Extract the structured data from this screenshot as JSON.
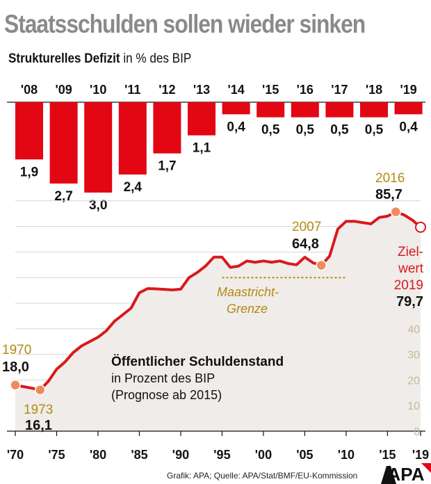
{
  "title": "Staatsschulden sollen wieder sinken",
  "subtitle_bold": "Strukturelles Defizit",
  "subtitle_rest": " in % des BIP",
  "source": "Grafik: APA; Quelle: APA/Stat/BMF/EU-Kommission",
  "logo_text": "APA",
  "colors": {
    "bar": "#e30613",
    "line": "#d9191c",
    "accent": "#b58a10",
    "point": "#f08a5d",
    "area": "#efecea",
    "title": "#8a8a8a"
  },
  "chart_data": [
    {
      "type": "bar",
      "title": "Strukturelles Defizit in % des BIP",
      "categories": [
        "'08",
        "'09",
        "'10",
        "'11",
        "'12",
        "'13",
        "'14",
        "'15",
        "'16",
        "'17",
        "'18",
        "'19"
      ],
      "values": [
        1.9,
        2.7,
        3.0,
        2.4,
        1.7,
        1.1,
        0.4,
        0.5,
        0.5,
        0.5,
        0.5,
        0.4
      ],
      "labels": [
        "1,9",
        "2,7",
        "3,0",
        "2,4",
        "1,7",
        "1,1",
        "0,4",
        "0,5",
        "0,5",
        "0,5",
        "0,5",
        "0,4"
      ],
      "orientation": "downward"
    },
    {
      "type": "area",
      "title": "Öffentlicher Schuldenstand",
      "subtitle_lines": [
        "in Prozent des BIP",
        "(Prognose ab 2015)"
      ],
      "x_ticks": [
        "'70",
        "'75",
        "'80",
        "'85",
        "'90",
        "'95",
        "'00",
        "'05",
        "'10",
        "'15",
        "'19"
      ],
      "x_tick_values": [
        1970,
        1975,
        1980,
        1985,
        1990,
        1995,
        2000,
        2005,
        2010,
        2015,
        2019
      ],
      "y_ticks": [
        0,
        10,
        20,
        30,
        40
      ],
      "y_range": [
        0,
        90
      ],
      "x": [
        1970,
        1971,
        1972,
        1973,
        1974,
        1975,
        1976,
        1977,
        1978,
        1979,
        1980,
        1981,
        1982,
        1983,
        1984,
        1985,
        1986,
        1987,
        1988,
        1989,
        1990,
        1991,
        1992,
        1993,
        1994,
        1995,
        1996,
        1997,
        1998,
        1999,
        2000,
        2001,
        2002,
        2003,
        2004,
        2005,
        2006,
        2007,
        2008,
        2009,
        2010,
        2011,
        2012,
        2013,
        2014,
        2015,
        2016,
        2017,
        2018,
        2019
      ],
      "values": [
        18.0,
        17.4,
        16.8,
        16.1,
        19.5,
        24.2,
        27.0,
        30.7,
        33.3,
        35.0,
        36.7,
        39.2,
        43.0,
        45.5,
        48.1,
        54.1,
        55.7,
        55.6,
        55.4,
        55.2,
        55.5,
        60.0,
        62.0,
        64.5,
        68.0,
        68.0,
        64.0,
        64.5,
        66.5,
        66.0,
        66.5,
        66.0,
        66.5,
        65.5,
        65.0,
        68.0,
        65.8,
        64.8,
        68.4,
        79.0,
        82.0,
        82.0,
        81.5,
        81.0,
        83.5,
        84.0,
        85.7,
        84.5,
        82.5,
        79.7
      ],
      "highlights": [
        {
          "year": "1970",
          "value": "18,0",
          "x": 1970,
          "y": 18.0,
          "style": "filled"
        },
        {
          "year": "1973",
          "value": "16,1",
          "x": 1973,
          "y": 16.1,
          "style": "filled"
        },
        {
          "year": "2007",
          "value": "64,8",
          "x": 2007,
          "y": 64.8,
          "style": "filled"
        },
        {
          "year": "2016",
          "value": "85,7",
          "x": 2016,
          "y": 85.7,
          "style": "filled"
        },
        {
          "year": "2019",
          "value": "79,7",
          "x": 2019,
          "y": 79.7,
          "style": "open",
          "label_prefix": [
            "Ziel-",
            "wert"
          ]
        }
      ],
      "reference_line": {
        "label": [
          "Maastricht-",
          "Grenze"
        ],
        "y": 60,
        "x_range": [
          1995,
          2010
        ]
      }
    }
  ]
}
